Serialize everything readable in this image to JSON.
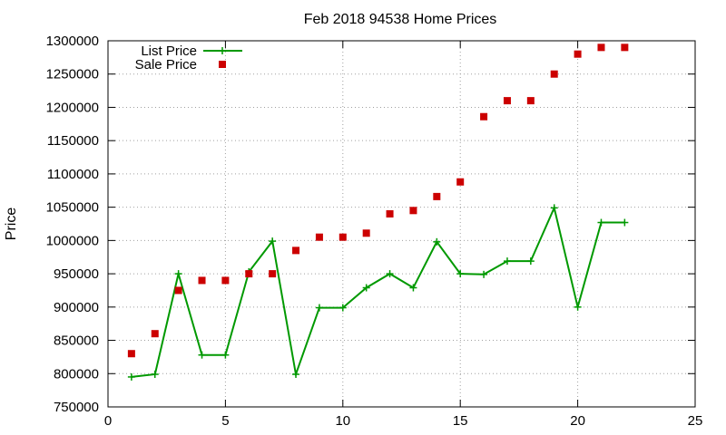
{
  "chart_data": {
    "type": "line",
    "title": "Feb 2018 94538 Home Prices",
    "xlabel": "",
    "ylabel": "Price",
    "xlim": [
      0,
      25
    ],
    "ylim": [
      750000,
      1300000
    ],
    "x_ticks": [
      0,
      5,
      10,
      15,
      20,
      25
    ],
    "y_ticks": [
      750000,
      800000,
      850000,
      900000,
      950000,
      1000000,
      1050000,
      1100000,
      1150000,
      1200000,
      1250000,
      1300000
    ],
    "grid": true,
    "legend_position": "top-left",
    "series": [
      {
        "name": "List Price",
        "style": "line-plus-markers",
        "color": "#009900",
        "x": [
          1,
          2,
          3,
          4,
          5,
          6,
          7,
          8,
          9,
          10,
          11,
          12,
          13,
          14,
          15,
          16,
          17,
          18,
          19,
          20,
          21,
          22
        ],
        "y": [
          795000,
          799000,
          950000,
          828000,
          828000,
          953000,
          999000,
          799000,
          899000,
          899000,
          929000,
          950000,
          929000,
          998000,
          950000,
          949000,
          969000,
          969000,
          1049000,
          900000,
          1027000,
          1027000
        ]
      },
      {
        "name": "Sale Price",
        "style": "square-markers",
        "color": "#cc0000",
        "x": [
          1,
          2,
          3,
          4,
          5,
          6,
          7,
          8,
          9,
          10,
          11,
          12,
          13,
          14,
          15,
          16,
          17,
          18,
          19,
          20,
          21,
          22
        ],
        "y": [
          830000,
          860000,
          925000,
          940000,
          940000,
          950000,
          950000,
          985000,
          1005000,
          1005000,
          1011000,
          1040000,
          1045000,
          1066000,
          1088000,
          1186000,
          1210000,
          1210000,
          1250000,
          1280000,
          1290000,
          1290000
        ]
      }
    ]
  }
}
